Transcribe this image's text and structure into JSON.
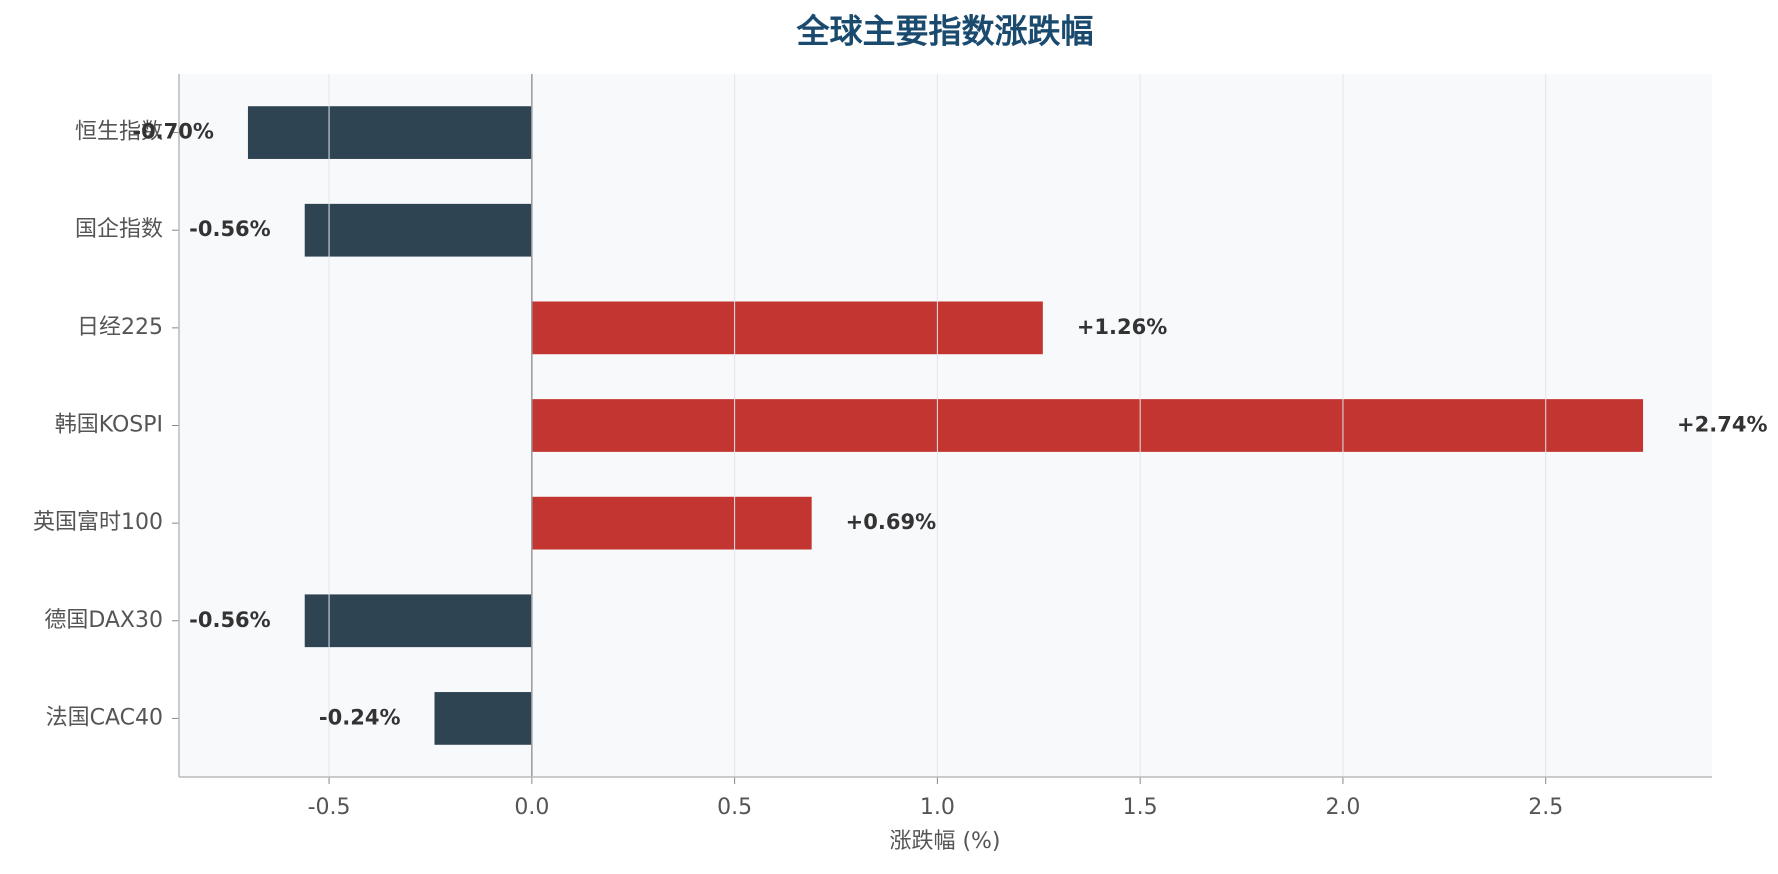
{
  "chart_data": {
    "type": "barh",
    "title": "全球主要指数涨跌幅",
    "x_label": "涨跌幅 (%)",
    "categories": [
      "恒生指数",
      "国企指数",
      "日经225",
      "韩国KOSPI",
      "英国富时100",
      "德国DAX30",
      "法国CAC40"
    ],
    "values": [
      -0.7,
      -0.56,
      1.26,
      2.74,
      0.69,
      -0.56,
      -0.24
    ],
    "value_labels": [
      "-0.70%",
      "-0.56%",
      "+1.26%",
      "+2.74%",
      "+0.69%",
      "-0.56%",
      "-0.24%"
    ],
    "positive_color": "#c23531",
    "negative_color": "#2e4453",
    "xlim": [
      -0.87,
      2.91
    ],
    "xticks": [
      -0.5,
      {
        "value": 0,
        "label": "0.0"
      },
      0.5,
      {
        "value": 1,
        "label": "1.0"
      },
      1.5,
      {
        "value": 2,
        "label": "2.0"
      },
      2.5
    ],
    "grid": true
  }
}
